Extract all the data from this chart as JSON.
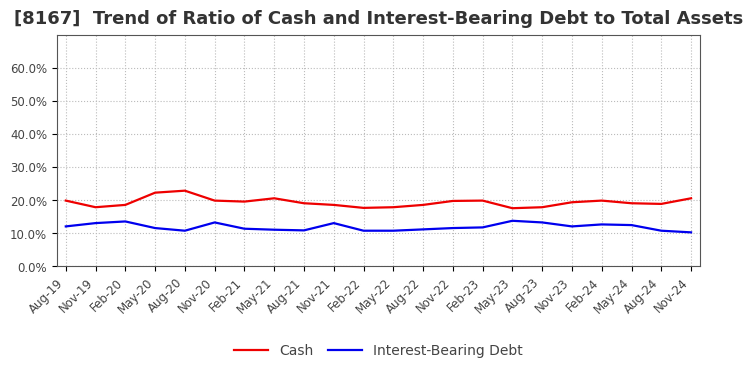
{
  "title": "[8167]  Trend of Ratio of Cash and Interest-Bearing Debt to Total Assets",
  "x_labels": [
    "Aug-19",
    "Nov-19",
    "Feb-20",
    "May-20",
    "Aug-20",
    "Nov-20",
    "Feb-21",
    "May-21",
    "Aug-21",
    "Nov-21",
    "Feb-22",
    "May-22",
    "Aug-22",
    "Nov-22",
    "Feb-23",
    "May-23",
    "Aug-23",
    "Nov-23",
    "Feb-24",
    "May-24",
    "Aug-24",
    "Nov-24"
  ],
  "cash": [
    0.198,
    0.178,
    0.185,
    0.222,
    0.228,
    0.198,
    0.195,
    0.205,
    0.19,
    0.185,
    0.176,
    0.178,
    0.185,
    0.197,
    0.198,
    0.175,
    0.178,
    0.193,
    0.198,
    0.19,
    0.188,
    0.205
  ],
  "ibd": [
    0.12,
    0.13,
    0.135,
    0.115,
    0.107,
    0.132,
    0.113,
    0.11,
    0.108,
    0.13,
    0.107,
    0.107,
    0.111,
    0.115,
    0.117,
    0.137,
    0.132,
    0.12,
    0.126,
    0.124,
    0.107,
    0.102
  ],
  "cash_color": "#ee0000",
  "ibd_color": "#0000ee",
  "bg_color": "#ffffff",
  "plot_bg_color": "#ffffff",
  "grid_color": "#bbbbbb",
  "ylim": [
    0.0,
    0.7
  ],
  "yticks": [
    0.0,
    0.1,
    0.2,
    0.3,
    0.4,
    0.5,
    0.6
  ],
  "ytick_labels": [
    "0.0%",
    "10.0%",
    "20.0%",
    "30.0%",
    "40.0%",
    "50.0%",
    "60.0%"
  ],
  "legend_cash": "Cash",
  "legend_ibd": "Interest-Bearing Debt",
  "title_fontsize": 13,
  "tick_fontsize": 8.5,
  "legend_fontsize": 10,
  "line_width": 1.6
}
